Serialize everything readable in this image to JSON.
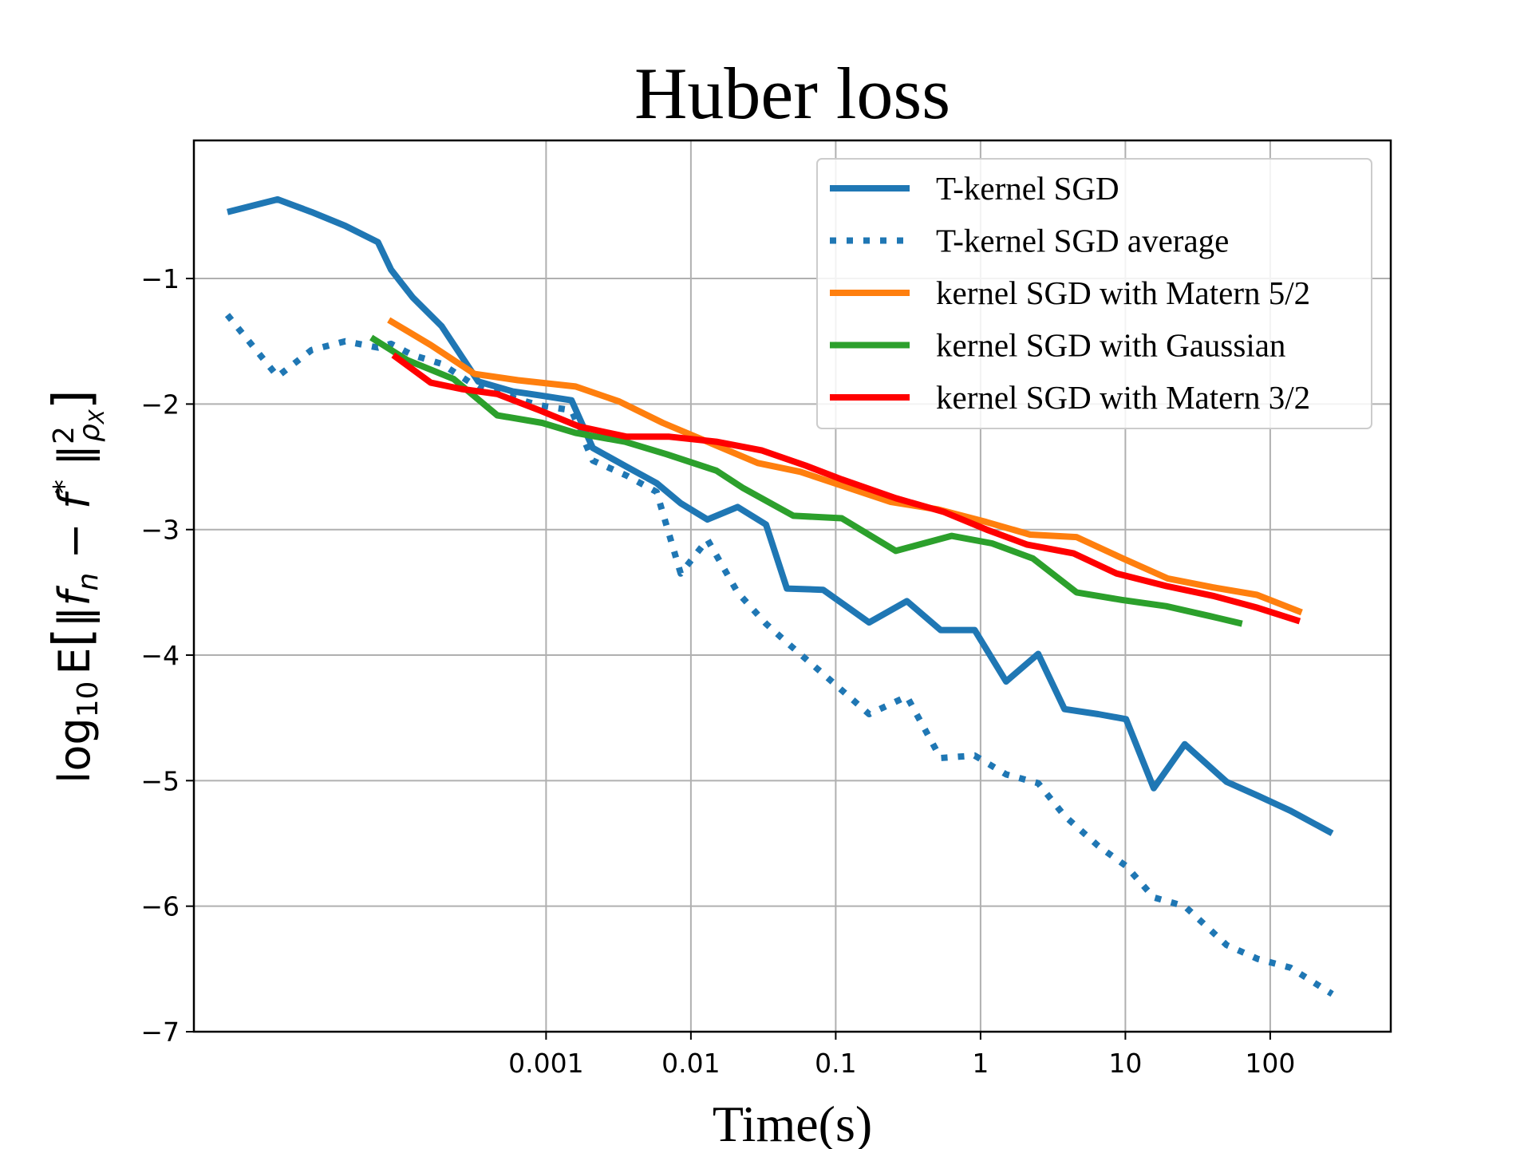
{
  "chart_data": {
    "type": "line",
    "title": "Huber loss",
    "xlabel": "Time(s)",
    "ylabel": {
      "prefix": "log",
      "sub": "10",
      "expectation": "E",
      "body": "‖f",
      "body_sub": "n",
      "minus": " − f",
      "star": "*",
      "norm_close": " ‖",
      "norm_sup": "2",
      "norm_sub": "ρ",
      "norm_sub_sub": "X"
    },
    "x_scale": "log",
    "xlim": [
      3.7e-06,
      680
    ],
    "ylim": [
      -7,
      0.1
    ],
    "grid": true,
    "xticks": [
      {
        "value": 0.001,
        "label": "0.001"
      },
      {
        "value": 0.01,
        "label": "0.01"
      },
      {
        "value": 0.1,
        "label": "0.1"
      },
      {
        "value": 1,
        "label": "1"
      },
      {
        "value": 10,
        "label": "10"
      },
      {
        "value": 100,
        "label": "100"
      }
    ],
    "yticks": [
      {
        "value": -1,
        "label": "−1"
      },
      {
        "value": -2,
        "label": "−2"
      },
      {
        "value": -3,
        "label": "−3"
      },
      {
        "value": -4,
        "label": "−4"
      },
      {
        "value": -5,
        "label": "−5"
      },
      {
        "value": -6,
        "label": "−6"
      },
      {
        "value": -7,
        "label": "−7"
      }
    ],
    "legend_position": "top-right",
    "series": [
      {
        "name": "T-kernel SGD",
        "color": "#1f77b4",
        "style": "solid",
        "x": [
          6.3e-06,
          1.4e-05,
          2.4e-05,
          4.1e-05,
          6.9e-05,
          8.5e-05,
          0.00012,
          0.00019,
          0.00034,
          0.00059,
          0.0009,
          0.0015,
          0.0021,
          0.0036,
          0.0058,
          0.0085,
          0.013,
          0.021,
          0.033,
          0.046,
          0.082,
          0.17,
          0.31,
          0.53,
          0.91,
          1.5,
          2.5,
          3.8,
          6.5,
          10.1,
          15.7,
          25.7,
          50,
          82,
          138,
          268
        ],
        "values": [
          -0.47,
          -0.37,
          -0.47,
          -0.58,
          -0.71,
          -0.93,
          -1.15,
          -1.38,
          -1.82,
          -1.9,
          -1.93,
          -1.97,
          -2.35,
          -2.5,
          -2.63,
          -2.79,
          -2.92,
          -2.82,
          -2.96,
          -3.47,
          -3.48,
          -3.74,
          -3.57,
          -3.8,
          -3.8,
          -4.21,
          -3.99,
          -4.43,
          -4.47,
          -4.51,
          -5.06,
          -4.71,
          -5.01,
          -5.12,
          -5.24,
          -5.42
        ]
      },
      {
        "name": "T-kernel SGD average",
        "color": "#1f77b4",
        "style": "dotted",
        "x": [
          6.3e-06,
          1.4e-05,
          2.4e-05,
          4.1e-05,
          6.9e-05,
          8.5e-05,
          0.00012,
          0.00019,
          0.00034,
          0.00059,
          0.0009,
          0.0015,
          0.0021,
          0.0036,
          0.0058,
          0.0085,
          0.013,
          0.021,
          0.033,
          0.046,
          0.082,
          0.17,
          0.31,
          0.53,
          0.91,
          1.5,
          2.5,
          3.8,
          6.5,
          10.1,
          15.7,
          25.7,
          50,
          82,
          138,
          268
        ],
        "values": [
          -1.29,
          -1.78,
          -1.57,
          -1.5,
          -1.55,
          -1.52,
          -1.61,
          -1.68,
          -1.87,
          -1.95,
          -2.01,
          -2.05,
          -2.45,
          -2.57,
          -2.7,
          -3.35,
          -3.08,
          -3.5,
          -3.75,
          -3.9,
          -4.15,
          -4.47,
          -4.33,
          -4.82,
          -4.8,
          -4.95,
          -5.02,
          -5.28,
          -5.52,
          -5.68,
          -5.93,
          -6.0,
          -6.31,
          -6.42,
          -6.49,
          -6.7
        ]
      },
      {
        "name": "kernel SGD with Matern 5/2",
        "color": "#ff7f0e",
        "style": "solid",
        "x": [
          8.2e-05,
          0.00016,
          0.00032,
          0.00064,
          0.0016,
          0.0032,
          0.0064,
          0.013,
          0.029,
          0.057,
          0.11,
          0.24,
          0.51,
          1.1,
          2.2,
          4.6,
          9.6,
          19.7,
          40.1,
          81,
          165
        ],
        "values": [
          -1.33,
          -1.53,
          -1.76,
          -1.81,
          -1.86,
          -1.98,
          -2.15,
          -2.3,
          -2.47,
          -2.54,
          -2.65,
          -2.78,
          -2.84,
          -2.94,
          -3.04,
          -3.06,
          -3.23,
          -3.39,
          -3.46,
          -3.52,
          -3.66
        ]
      },
      {
        "name": "kernel SGD with Gaussian",
        "color": "#2ca02c",
        "style": "solid",
        "x": [
          6.2e-05,
          0.00011,
          0.00023,
          0.00046,
          0.00094,
          0.0016,
          0.0035,
          0.0068,
          0.015,
          0.023,
          0.051,
          0.11,
          0.26,
          0.63,
          1.2,
          2.3,
          4.6,
          9.4,
          19.1,
          38.7,
          64
        ],
        "values": [
          -1.47,
          -1.65,
          -1.8,
          -2.09,
          -2.15,
          -2.23,
          -2.3,
          -2.4,
          -2.53,
          -2.67,
          -2.89,
          -2.91,
          -3.17,
          -3.05,
          -3.11,
          -3.23,
          -3.5,
          -3.56,
          -3.61,
          -3.69,
          -3.75
        ]
      },
      {
        "name": "kernel SGD with Matern 3/2",
        "color": "#ff0000",
        "style": "solid",
        "x": [
          8.8e-05,
          0.00016,
          0.00026,
          0.00046,
          0.0009,
          0.0017,
          0.0036,
          0.0071,
          0.015,
          0.031,
          0.062,
          0.11,
          0.26,
          0.56,
          1.1,
          2.1,
          4.4,
          8.7,
          19.2,
          41,
          80,
          160
        ],
        "values": [
          -1.61,
          -1.83,
          -1.88,
          -1.92,
          -2.05,
          -2.18,
          -2.26,
          -2.26,
          -2.3,
          -2.37,
          -2.49,
          -2.6,
          -2.75,
          -2.86,
          -3.0,
          -3.12,
          -3.19,
          -3.35,
          -3.45,
          -3.53,
          -3.62,
          -3.73
        ]
      }
    ]
  }
}
